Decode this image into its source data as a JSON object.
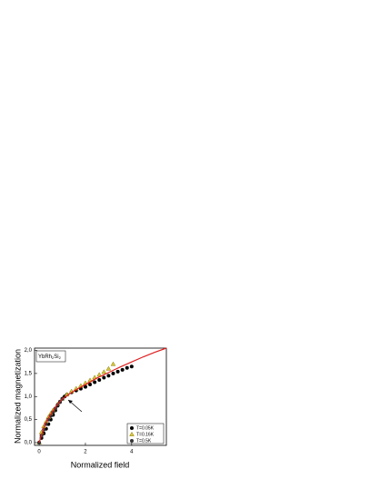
{
  "chart_data": {
    "type": "scatter",
    "ylabel": "Normalized magnetization",
    "xlabel": "Normalized field",
    "annotation": {
      "parts": [
        "YbRh",
        "2",
        "Si",
        "2"
      ]
    },
    "xlim": [
      -0.2,
      5.5
    ],
    "xticks": [
      0,
      2,
      4
    ],
    "ylim": [
      -0.06,
      2.05
    ],
    "yticks": [
      {
        "value": 0,
        "label": "0,0"
      },
      {
        "value": 0.5,
        "label": "0,5"
      },
      {
        "value": 1,
        "label": "1,0"
      },
      {
        "value": 1.5,
        "label": "1,5"
      },
      {
        "value": 2,
        "label": "2,0"
      }
    ],
    "legend": "lower right",
    "series": [
      {
        "name": "T=0.05K",
        "color": "#000000",
        "marker": "circle",
        "x": [
          0,
          0.1,
          0.2,
          0.3,
          0.4,
          0.5,
          0.6,
          0.7,
          0.8,
          0.9,
          1.0,
          1.1,
          1.2,
          1.4,
          1.6,
          1.8,
          2.0,
          2.2,
          2.4,
          2.6,
          2.8,
          3.0,
          3.2,
          3.4,
          3.6,
          3.8,
          4.0
        ],
        "values": [
          0,
          0.1,
          0.2,
          0.3,
          0.4,
          0.5,
          0.6,
          0.7,
          0.8,
          0.88,
          0.95,
          1.0,
          1.04,
          1.09,
          1.13,
          1.17,
          1.21,
          1.26,
          1.31,
          1.36,
          1.41,
          1.45,
          1.5,
          1.54,
          1.58,
          1.62,
          1.65
        ]
      },
      {
        "name": "T=0.16K",
        "color": "#8b7d00",
        "marker": "triangle",
        "x": [
          0,
          0.1,
          0.2,
          0.3,
          0.4,
          0.5,
          0.6,
          0.8,
          1.0,
          1.2,
          1.4,
          1.6,
          1.8,
          2.0,
          2.2,
          2.4,
          2.6,
          2.8,
          3.0,
          3.2
        ],
        "values": [
          0,
          0.22,
          0.35,
          0.45,
          0.55,
          0.63,
          0.7,
          0.83,
          0.95,
          1.04,
          1.11,
          1.17,
          1.23,
          1.29,
          1.35,
          1.41,
          1.47,
          1.53,
          1.6,
          1.7
        ]
      },
      {
        "name": "T=0.5K",
        "color": "#333333",
        "marker": "circle",
        "x": [
          0,
          0.1,
          0.2,
          0.3,
          0.4,
          0.5,
          0.6,
          0.7,
          0.8,
          0.9,
          1.0
        ],
        "values": [
          0,
          0.15,
          0.28,
          0.4,
          0.5,
          0.58,
          0.66,
          0.74,
          0.82,
          0.89,
          0.95
        ]
      },
      {
        "type": "line",
        "color": "#e02020",
        "x": [
          0,
          0.25,
          0.5,
          0.75,
          1.0,
          1.5,
          2.0,
          2.5,
          3.0,
          3.5,
          4.0,
          4.5,
          5.0,
          5.5
        ],
        "values": [
          0,
          0.4,
          0.62,
          0.8,
          0.95,
          1.12,
          1.26,
          1.4,
          1.52,
          1.64,
          1.75,
          1.86,
          1.96,
          2.05
        ]
      }
    ]
  }
}
